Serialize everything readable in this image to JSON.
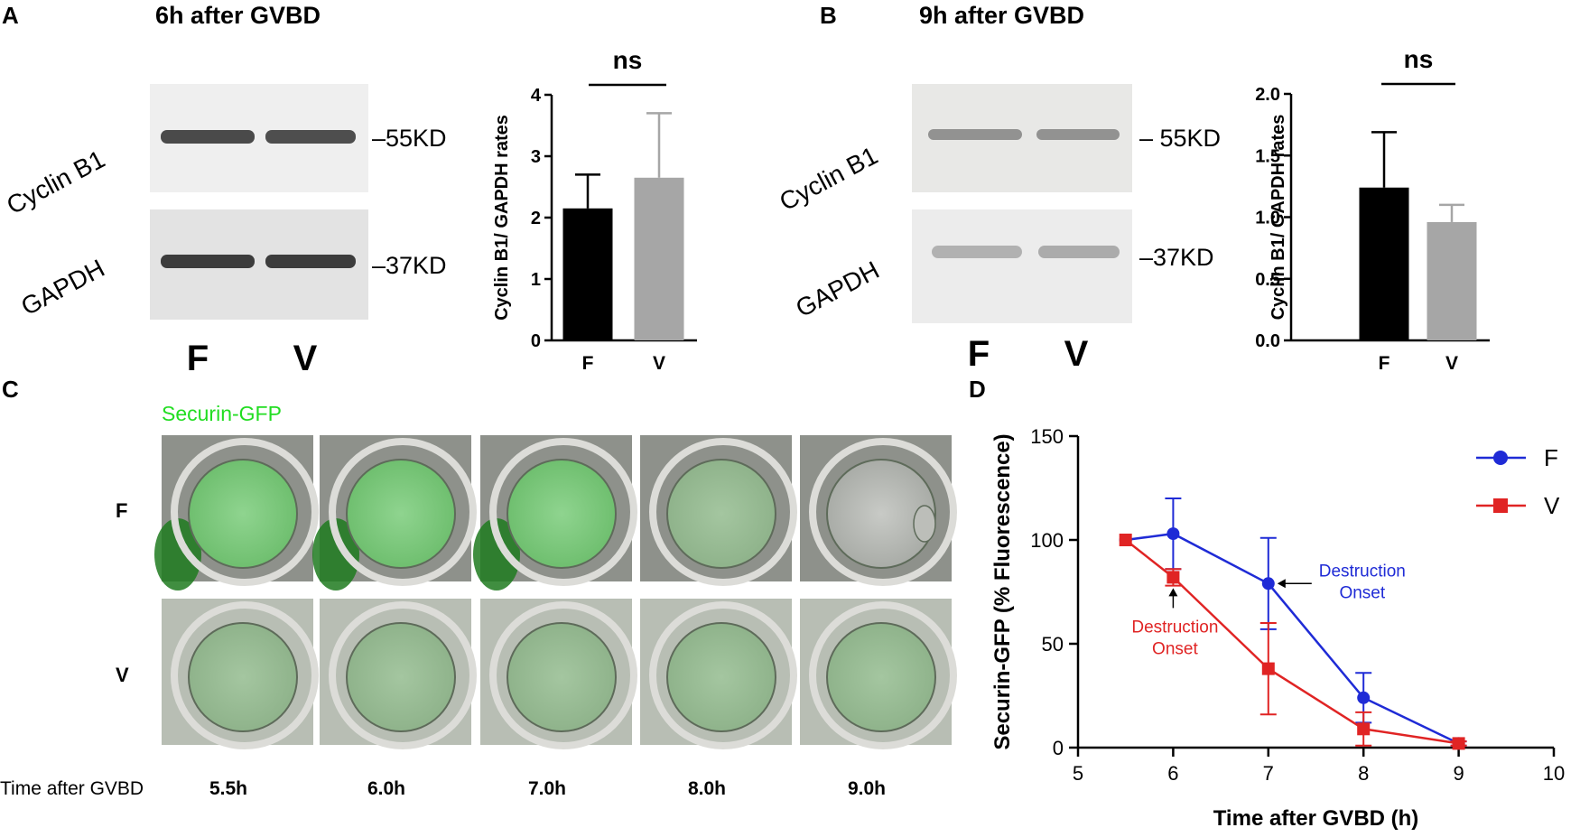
{
  "panels": {
    "A": {
      "letter": "A",
      "heading": "6h after GVBD",
      "blot_labels": [
        "Cyclin B1",
        "GAPDH"
      ],
      "markers": [
        "–55KD",
        "–37KD"
      ],
      "lanes": [
        "F",
        "V"
      ]
    },
    "B": {
      "letter": "B",
      "heading": "9h after GVBD",
      "blot_labels": [
        "Cyclin B1",
        "GAPDH"
      ],
      "markers": [
        "– 55KD",
        "–37KD"
      ],
      "lanes": [
        "F",
        "V"
      ]
    },
    "C": {
      "letter": "C",
      "channel_label": "Securin-GFP",
      "row_labels": [
        "F",
        "V"
      ],
      "time_caption": "Time after GVBD",
      "time_points": [
        "5.5h",
        "6.0h",
        "7.0h",
        "8.0h",
        "9.0h"
      ]
    },
    "D": {
      "letter": "D"
    }
  },
  "colors": {
    "black_bar": "#000000",
    "gray_bar": "#a6a6a6",
    "F_series": "#1f2bd6",
    "V_series": "#e02424",
    "gfp_label": "#22dd22"
  },
  "chart_data": [
    {
      "id": "A-bar",
      "type": "bar",
      "categories": [
        "F",
        "V"
      ],
      "values": [
        2.15,
        2.65
      ],
      "errors": [
        0.55,
        1.05
      ],
      "bar_colors": [
        "#000000",
        "#a6a6a6"
      ],
      "ylabel": "Cyclin B1/ GAPDH rates",
      "ylim": [
        0,
        4
      ],
      "yticks": [
        "0",
        "1",
        "2",
        "3",
        "4"
      ],
      "annotation": "ns"
    },
    {
      "id": "B-bar",
      "type": "bar",
      "categories": [
        "F",
        "V"
      ],
      "values": [
        1.24,
        0.96
      ],
      "errors": [
        0.45,
        0.14
      ],
      "bar_colors": [
        "#000000",
        "#a6a6a6"
      ],
      "ylabel": "Cyclin B1/ GAPDH rates",
      "ylim": [
        0,
        2.0
      ],
      "yticks": [
        "0.0",
        "0.5",
        "1.0",
        "1.5",
        "2.0"
      ],
      "annotation": "ns"
    },
    {
      "id": "D-line",
      "type": "line",
      "xlabel": "Time after GVBD (h)",
      "ylabel": "Securin-GFP (% Fluorescence)",
      "xlim": [
        5,
        10
      ],
      "ylim": [
        0,
        150
      ],
      "xticks": [
        "5",
        "6",
        "7",
        "8",
        "9",
        "10"
      ],
      "yticks": [
        "0",
        "50",
        "100",
        "150"
      ],
      "legend": "top-right",
      "series": [
        {
          "name": "F",
          "marker": "circle",
          "color": "#1f2bd6",
          "x": [
            5.5,
            6,
            7,
            8,
            9
          ],
          "y": [
            100,
            103,
            79,
            24,
            2
          ],
          "errors": [
            0,
            17,
            22,
            12,
            1
          ]
        },
        {
          "name": "V",
          "marker": "square",
          "color": "#e02424",
          "x": [
            5.5,
            6,
            7,
            8,
            9
          ],
          "y": [
            100,
            82,
            38,
            9,
            2
          ],
          "errors": [
            0,
            4,
            22,
            8,
            1
          ]
        }
      ],
      "annotations": [
        {
          "text": [
            "Destruction",
            "Onset"
          ],
          "series": "F",
          "color": "#1f2bd6"
        },
        {
          "text": [
            "Destruction",
            "Onset"
          ],
          "series": "V",
          "color": "#e02424"
        }
      ]
    }
  ]
}
